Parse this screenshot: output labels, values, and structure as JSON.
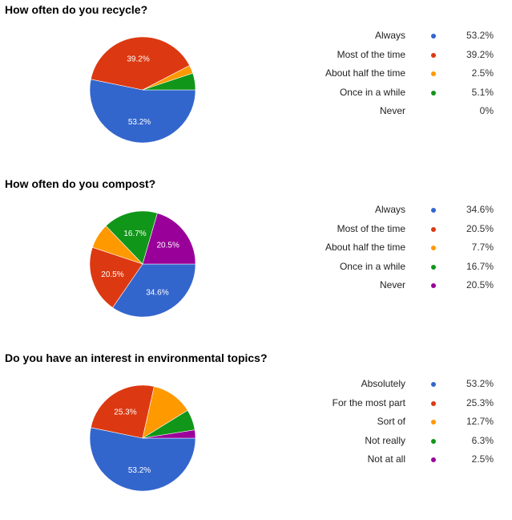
{
  "palette": {
    "blue": "#3366cc",
    "red": "#dc3912",
    "orange": "#ff9900",
    "green": "#109618",
    "purple": "#990099"
  },
  "chart_data": [
    {
      "type": "pie",
      "title": "How often do you recycle?",
      "legend_position": "right",
      "slices": [
        {
          "label": "Always",
          "value": 53.2,
          "display": "53.2%",
          "color": "#3366cc",
          "slice_label": "53.2%"
        },
        {
          "label": "Most of the time",
          "value": 39.2,
          "display": "39.2%",
          "color": "#dc3912",
          "slice_label": "39.2%"
        },
        {
          "label": "About half the time",
          "value": 2.5,
          "display": "2.5%",
          "color": "#ff9900",
          "slice_label": ""
        },
        {
          "label": "Once in a while",
          "value": 5.1,
          "display": "5.1%",
          "color": "#109618",
          "slice_label": ""
        },
        {
          "label": "Never",
          "value": 0,
          "display": "0%",
          "color": "",
          "slice_label": ""
        }
      ]
    },
    {
      "type": "pie",
      "title": "How often do you compost?",
      "legend_position": "right",
      "slices": [
        {
          "label": "Always",
          "value": 34.6,
          "display": "34.6%",
          "color": "#3366cc",
          "slice_label": "34.6%"
        },
        {
          "label": "Most of the time",
          "value": 20.5,
          "display": "20.5%",
          "color": "#dc3912",
          "slice_label": "20.5%"
        },
        {
          "label": "About half the time",
          "value": 7.7,
          "display": "7.7%",
          "color": "#ff9900",
          "slice_label": ""
        },
        {
          "label": "Once in a while",
          "value": 16.7,
          "display": "16.7%",
          "color": "#109618",
          "slice_label": "16.7%"
        },
        {
          "label": "Never",
          "value": 20.5,
          "display": "20.5%",
          "color": "#990099",
          "slice_label": "20.5%"
        }
      ]
    },
    {
      "type": "pie",
      "title": "Do you have an interest in environmental topics?",
      "legend_position": "right",
      "slices": [
        {
          "label": "Absolutely",
          "value": 53.2,
          "display": "53.2%",
          "color": "#3366cc",
          "slice_label": "53.2%"
        },
        {
          "label": "For the most part",
          "value": 25.3,
          "display": "25.3%",
          "color": "#dc3912",
          "slice_label": "25.3%"
        },
        {
          "label": "Sort of",
          "value": 12.7,
          "display": "12.7%",
          "color": "#ff9900",
          "slice_label": ""
        },
        {
          "label": "Not really",
          "value": 6.3,
          "display": "6.3%",
          "color": "#109618",
          "slice_label": ""
        },
        {
          "label": "Not at all",
          "value": 2.5,
          "display": "2.5%",
          "color": "#990099",
          "slice_label": ""
        }
      ]
    }
  ]
}
